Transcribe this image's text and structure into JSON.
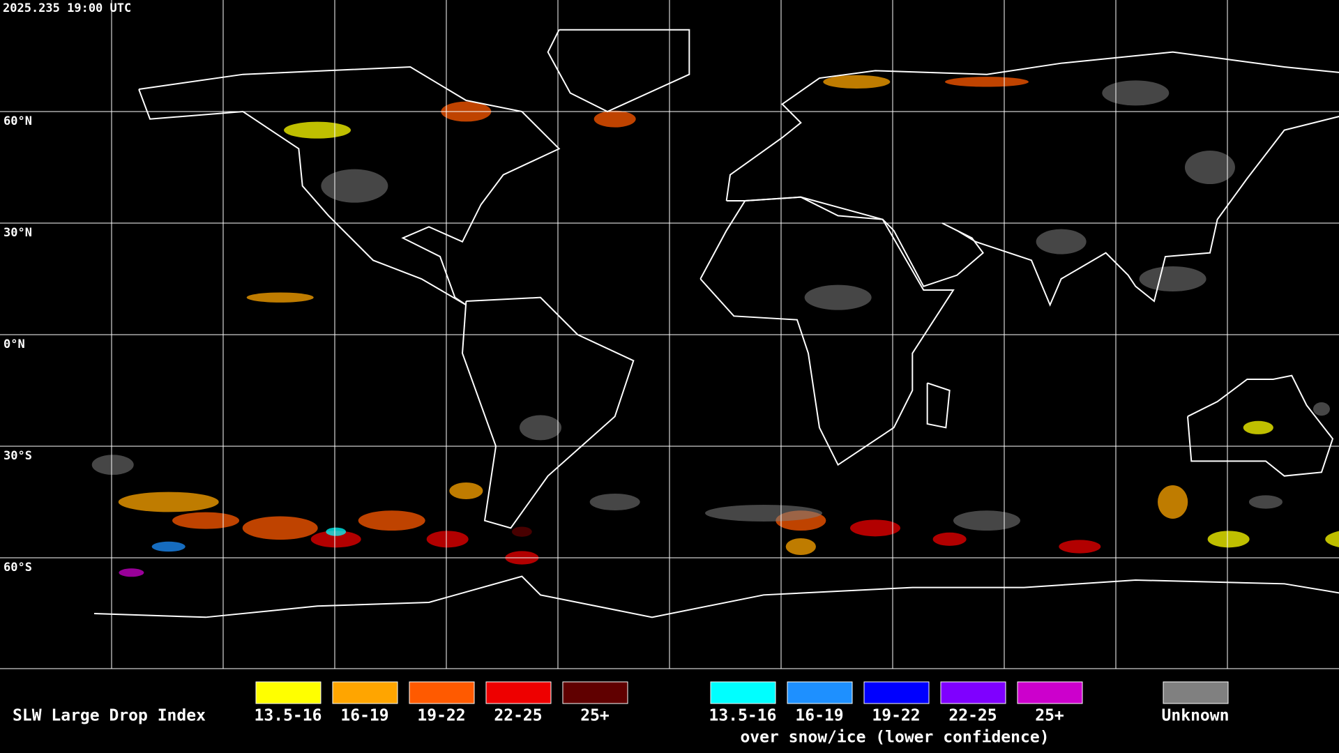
{
  "header": {
    "timestamp": "2025.235 19:00 UTC"
  },
  "map": {
    "lat_labels": [
      "60°N",
      "30°N",
      "0°N",
      "30°S",
      "60°S"
    ]
  },
  "legend": {
    "title": "SLW Large Drop Index",
    "items": [
      {
        "label": "13.5-16",
        "color": "#ffff00"
      },
      {
        "label": "16-19",
        "color": "#ffa500"
      },
      {
        "label": "19-22",
        "color": "#ff5a00"
      },
      {
        "label": "22-25",
        "color": "#ee0000"
      },
      {
        "label": "25+",
        "color": "#600000"
      }
    ],
    "snow_items": [
      {
        "label": "13.5-16",
        "color": "#00ffff"
      },
      {
        "label": "16-19",
        "color": "#1e90ff"
      },
      {
        "label": "19-22",
        "color": "#0000ff"
      },
      {
        "label": "22-25",
        "color": "#7f00ff"
      },
      {
        "label": "25+",
        "color": "#cc00cc"
      }
    ],
    "snow_caption": "over snow/ice (lower confidence)",
    "unknown": {
      "label": "Unknown",
      "color": "#808080"
    }
  }
}
